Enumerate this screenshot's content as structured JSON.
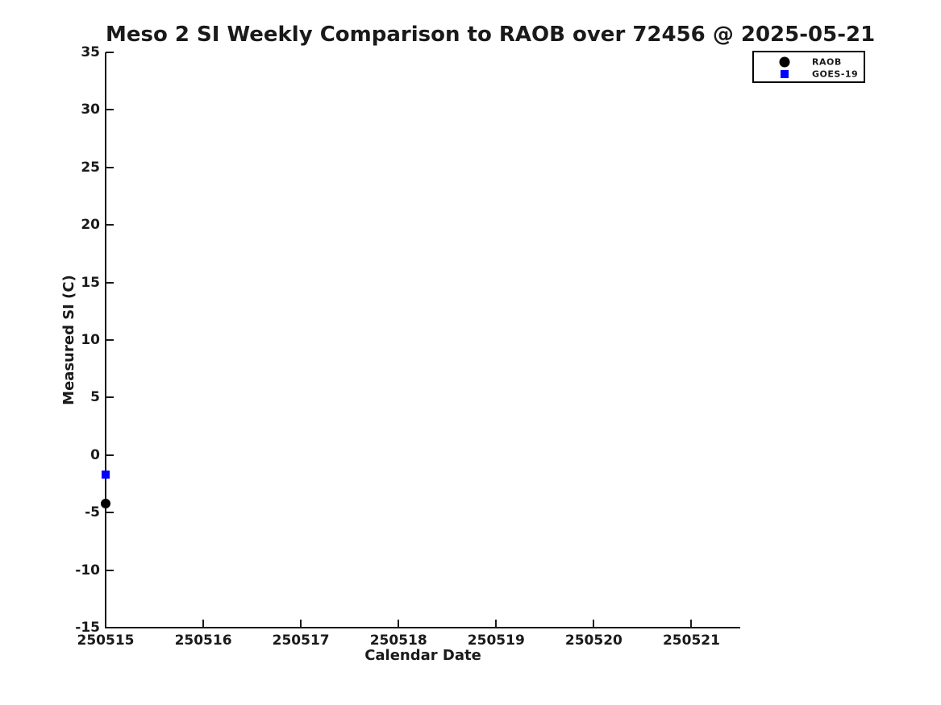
{
  "colors": {
    "background": "#ffffff",
    "text": "#1a1a1a",
    "axis": "#1a1a1a",
    "legend_border": "#000000",
    "raob_marker": "#000000",
    "goes19_marker": "#0000ff"
  },
  "chart_data": {
    "type": "scatter",
    "title": "Meso 2 SI Weekly Comparison to RAOB over 72456 @ 2025-05-21",
    "xlabel": "Calendar Date",
    "ylabel": "Measured SI (C)",
    "x_ticks": [
      "250515",
      "250516",
      "250517",
      "250518",
      "250519",
      "250520",
      "250521"
    ],
    "y_ticks": [
      35,
      30,
      25,
      20,
      15,
      10,
      5,
      0,
      -5,
      -10,
      -15
    ],
    "xlim": [
      250515,
      250521.5
    ],
    "ylim": [
      -15,
      35
    ],
    "grid": false,
    "legend_position": "outside-top-right",
    "series": [
      {
        "name": "RAOB",
        "marker": "circle",
        "color": "#000000",
        "points": [
          {
            "x": 250515,
            "y": -4.2
          }
        ]
      },
      {
        "name": "GOES-19",
        "marker": "square",
        "color": "#0000ff",
        "points": [
          {
            "x": 250515,
            "y": -1.7
          }
        ]
      }
    ]
  }
}
